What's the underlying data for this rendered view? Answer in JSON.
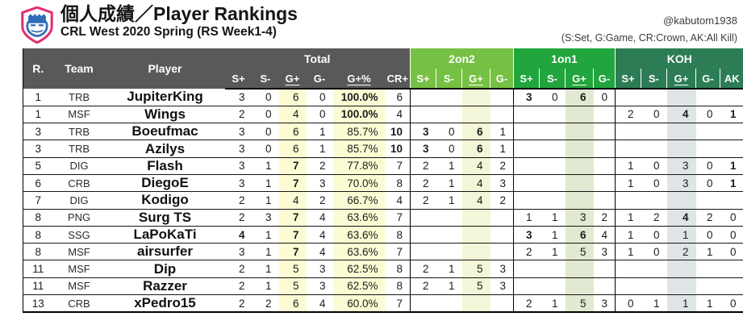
{
  "page": {
    "credit": "@kabutom1938",
    "legend": "(S:Set, G:Game, CR:Crown, AK:All Kill)"
  },
  "colors": {
    "header_gray": "#595959",
    "group_2on2": "#76c043",
    "group_1on1": "#21a53d",
    "group_koh": "#2c7d55",
    "stripe_yellow": "#fcfcd4",
    "stripe_2on2": "#f3f6d8",
    "stripe_1on1": "#e1e9d2",
    "stripe_koh": "#dfe5e7"
  },
  "chart_data": {
    "type": "table",
    "title": "個人成績／Player Rankings",
    "subtitle": "CRL West 2020 Spring (RS Week1-4)",
    "bold_marker_note": "values prefixed with * are rendered bold",
    "base_headers": [
      "R.",
      "Team",
      "Player"
    ],
    "groups": [
      {
        "label": "Total",
        "subs": [
          "S+",
          "S-",
          "G+",
          "G-",
          "G+%",
          "CR+"
        ]
      },
      {
        "label": "2on2",
        "subs": [
          "S+",
          "S-",
          "G+",
          "G-"
        ]
      },
      {
        "label": "1on1",
        "subs": [
          "S+",
          "S-",
          "G+",
          "G-"
        ]
      },
      {
        "label": "KOH",
        "subs": [
          "S+",
          "S-",
          "G+",
          "G-",
          "AK"
        ]
      }
    ],
    "rows": [
      {
        "rank": "1",
        "team": "TRB",
        "player": "JupiterKing",
        "total": [
          "3",
          "0",
          "6",
          "0",
          "*100.0%",
          "6"
        ],
        "two": [
          "",
          "",
          "",
          ""
        ],
        "one": [
          "*3",
          "0",
          "*6",
          "0"
        ],
        "koh": [
          "",
          "",
          "",
          "",
          ""
        ]
      },
      {
        "rank": "1",
        "team": "MSF",
        "player": "Wings",
        "total": [
          "2",
          "0",
          "4",
          "0",
          "*100.0%",
          "4"
        ],
        "two": [
          "",
          "",
          "",
          ""
        ],
        "one": [
          "",
          "",
          "",
          ""
        ],
        "koh": [
          "2",
          "0",
          "*4",
          "0",
          "*1"
        ]
      },
      {
        "rank": "3",
        "team": "TRB",
        "player": "Boeufmac",
        "total": [
          "3",
          "0",
          "6",
          "1",
          "85.7%",
          "*10"
        ],
        "two": [
          "*3",
          "0",
          "*6",
          "1"
        ],
        "one": [
          "",
          "",
          "",
          ""
        ],
        "koh": [
          "",
          "",
          "",
          "",
          ""
        ]
      },
      {
        "rank": "3",
        "team": "TRB",
        "player": "Azilys",
        "total": [
          "3",
          "0",
          "6",
          "1",
          "85.7%",
          "*10"
        ],
        "two": [
          "*3",
          "0",
          "*6",
          "1"
        ],
        "one": [
          "",
          "",
          "",
          ""
        ],
        "koh": [
          "",
          "",
          "",
          "",
          ""
        ]
      },
      {
        "rank": "5",
        "team": "DIG",
        "player": "Flash",
        "total": [
          "3",
          "1",
          "*7",
          "2",
          "77.8%",
          "7"
        ],
        "two": [
          "2",
          "1",
          "4",
          "2"
        ],
        "one": [
          "",
          "",
          "",
          ""
        ],
        "koh": [
          "1",
          "0",
          "3",
          "0",
          "*1"
        ]
      },
      {
        "rank": "6",
        "team": "CRB",
        "player": "DiegoE",
        "total": [
          "3",
          "1",
          "*7",
          "3",
          "70.0%",
          "8"
        ],
        "two": [
          "2",
          "1",
          "4",
          "3"
        ],
        "one": [
          "",
          "",
          "",
          ""
        ],
        "koh": [
          "1",
          "0",
          "3",
          "0",
          "*1"
        ]
      },
      {
        "rank": "7",
        "team": "DIG",
        "player": "Kodigo",
        "total": [
          "2",
          "1",
          "4",
          "2",
          "66.7%",
          "4"
        ],
        "two": [
          "2",
          "1",
          "4",
          "2"
        ],
        "one": [
          "",
          "",
          "",
          ""
        ],
        "koh": [
          "",
          "",
          "",
          "",
          ""
        ]
      },
      {
        "rank": "8",
        "team": "PNG",
        "player": "Surg TS",
        "total": [
          "2",
          "3",
          "*7",
          "4",
          "63.6%",
          "7"
        ],
        "two": [
          "",
          "",
          "",
          ""
        ],
        "one": [
          "1",
          "1",
          "3",
          "2"
        ],
        "koh": [
          "1",
          "2",
          "*4",
          "2",
          "0"
        ]
      },
      {
        "rank": "8",
        "team": "SSG",
        "player": "LaPoKaTi",
        "total": [
          "*4",
          "1",
          "*7",
          "4",
          "63.6%",
          "8"
        ],
        "two": [
          "",
          "",
          "",
          ""
        ],
        "one": [
          "*3",
          "1",
          "*6",
          "4"
        ],
        "koh": [
          "1",
          "0",
          "1",
          "0",
          "0"
        ]
      },
      {
        "rank": "8",
        "team": "MSF",
        "player": "airsurfer",
        "total": [
          "3",
          "1",
          "*7",
          "4",
          "63.6%",
          "7"
        ],
        "two": [
          "",
          "",
          "",
          ""
        ],
        "one": [
          "2",
          "1",
          "5",
          "3"
        ],
        "koh": [
          "1",
          "0",
          "2",
          "1",
          "0"
        ]
      },
      {
        "rank": "11",
        "team": "MSF",
        "player": "Dip",
        "total": [
          "2",
          "1",
          "5",
          "3",
          "62.5%",
          "8"
        ],
        "two": [
          "2",
          "1",
          "5",
          "3"
        ],
        "one": [
          "",
          "",
          "",
          ""
        ],
        "koh": [
          "",
          "",
          "",
          "",
          ""
        ]
      },
      {
        "rank": "11",
        "team": "MSF",
        "player": "Razzer",
        "total": [
          "2",
          "1",
          "5",
          "3",
          "62.5%",
          "8"
        ],
        "two": [
          "2",
          "1",
          "5",
          "3"
        ],
        "one": [
          "",
          "",
          "",
          ""
        ],
        "koh": [
          "",
          "",
          "",
          "",
          ""
        ]
      },
      {
        "rank": "13",
        "team": "CRB",
        "player": "xPedro15",
        "total": [
          "2",
          "2",
          "6",
          "4",
          "60.0%",
          "7"
        ],
        "two": [
          "",
          "",
          "",
          ""
        ],
        "one": [
          "2",
          "1",
          "5",
          "3"
        ],
        "koh": [
          "0",
          "1",
          "1",
          "1",
          "0"
        ]
      }
    ]
  }
}
